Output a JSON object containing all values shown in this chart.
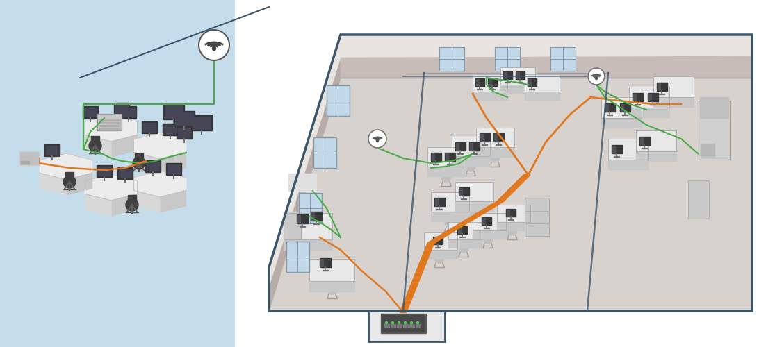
{
  "left_bg": "#c5dcea",
  "right_bg": "#ffffff",
  "orange": "#e07820",
  "green": "#4aaa4a",
  "wall_dark": "#3a5468",
  "wall_face": "#b8aca8",
  "wall_back": "#c8bcb8",
  "wall_right": "#d4ccc8",
  "floor_main": "#d8d2ce",
  "floor_light": "#e0dcd8",
  "ceiling_strip": "#e8e4e0",
  "interior_wall": "#c4b8b4",
  "interior_wall2": "#beb2ae",
  "window_blue": "#c0d8e8",
  "window_edge": "#889aaa",
  "desk_top": "#e8e8e8",
  "desk_side": "#c8c8c8",
  "monitor_dark": "#383838",
  "chair_dark": "#484848",
  "switch_dark": "#585858",
  "copier_light": "#d0d0d0",
  "panel_gray": "#c8c8c8"
}
